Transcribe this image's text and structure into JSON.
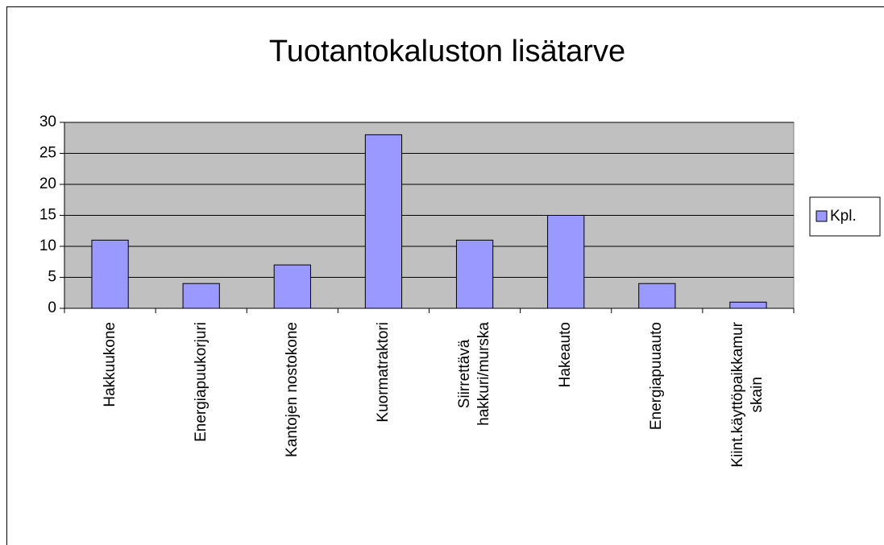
{
  "chart_data": {
    "type": "bar",
    "title": "Tuotantokaluston lisätarve",
    "categories": [
      "Hakkuukone",
      "Energiapuukorjuri",
      "Kantojen nostokone",
      "Kuormatraktori",
      "Siirrettävä\nhakkuri/murska",
      "Hakeauto",
      "Energiapuuauto",
      "Kiint.käyttöpaikkamur\nskain"
    ],
    "series": [
      {
        "name": "Kpl.",
        "color": "#9999ff",
        "values": [
          11,
          4,
          7,
          28,
          11,
          15,
          4,
          1
        ]
      }
    ],
    "ylim": [
      0,
      30
    ],
    "yticks": [
      0,
      5,
      10,
      15,
      20,
      25,
      30
    ],
    "grid": true,
    "legend": "right"
  }
}
